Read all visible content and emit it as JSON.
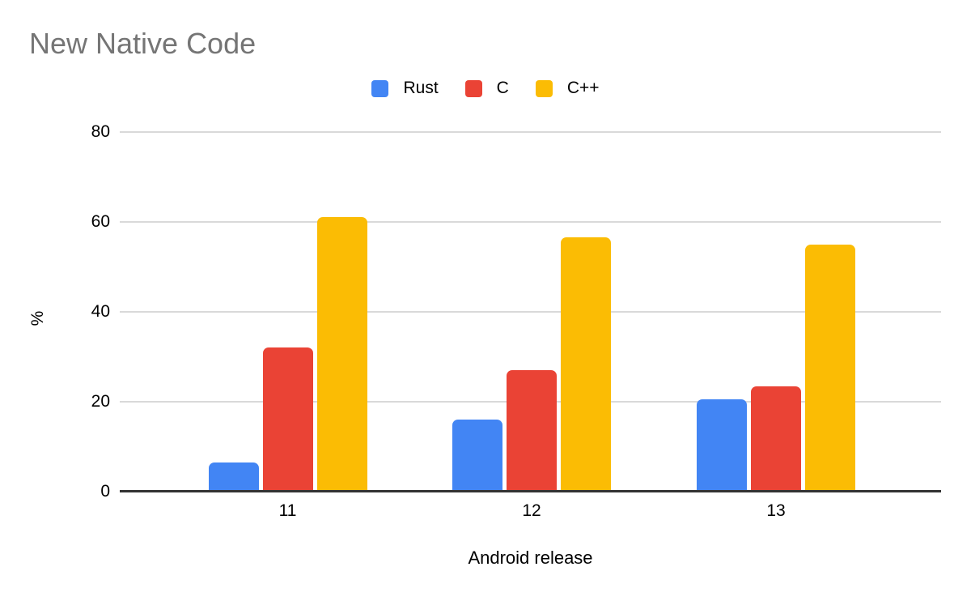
{
  "title": "New Native Code",
  "colors": {
    "rust": "#4285F4",
    "c": "#EA4335",
    "cpp": "#FBBC04",
    "title_text": "#757575",
    "axis_text": "#000000",
    "gridline": "#D9D9D9",
    "baseline": "#333333",
    "background": "#FFFFFF"
  },
  "legend": {
    "items": [
      {
        "label": "Rust",
        "color": "#4285F4"
      },
      {
        "label": "C",
        "color": "#EA4335"
      },
      {
        "label": "C++",
        "color": "#FBBC04"
      }
    ]
  },
  "chart_data": {
    "type": "bar",
    "title": "New Native Code",
    "categories": [
      "11",
      "12",
      "13"
    ],
    "series": [
      {
        "name": "Rust",
        "color": "#4285F4",
        "values": [
          6.5,
          16,
          20.5
        ]
      },
      {
        "name": "C",
        "color": "#EA4335",
        "values": [
          32,
          27,
          23.5
        ]
      },
      {
        "name": "C++",
        "color": "#FBBC04",
        "values": [
          61,
          56.5,
          55
        ]
      }
    ],
    "xlabel": "Android release",
    "ylabel": "%",
    "yticks": [
      0,
      20,
      40,
      60,
      80
    ],
    "ylim": [
      0,
      80
    ],
    "grid": true,
    "legend_position": "top-center"
  }
}
